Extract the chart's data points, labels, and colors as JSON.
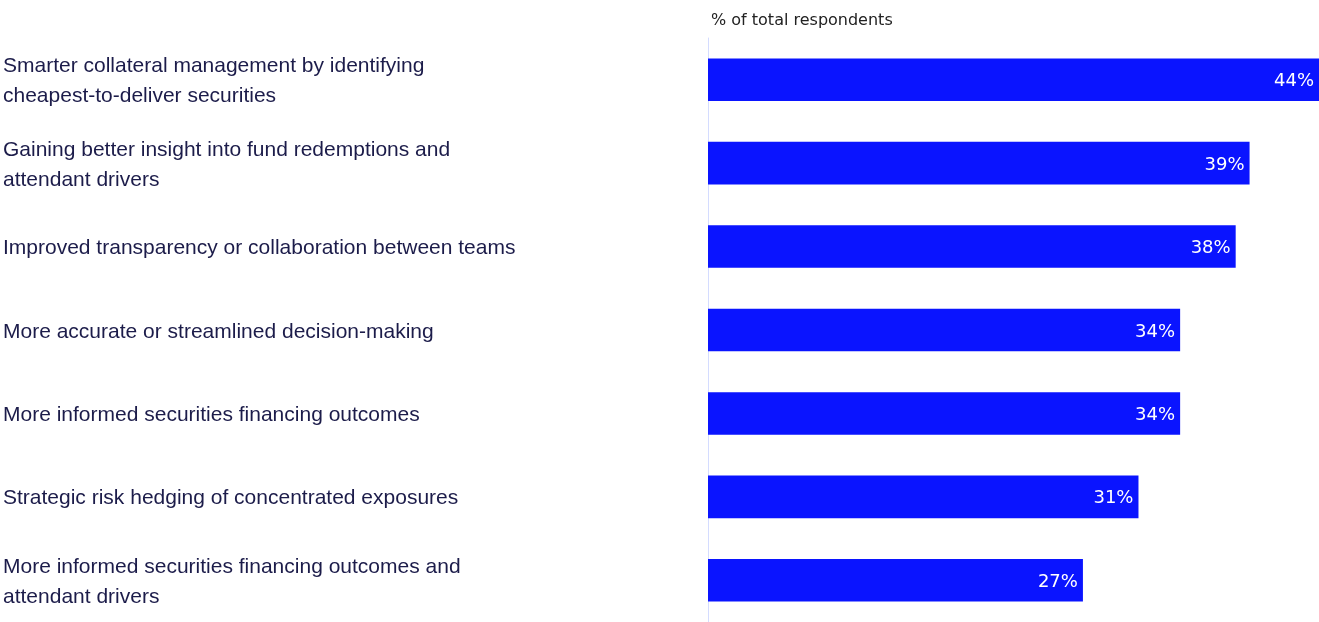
{
  "chart_data": {
    "type": "bar",
    "orientation": "horizontal",
    "title": "% of total respondents",
    "categories": [
      "Smarter collateral management by identifying cheapest-to-deliver securities",
      "Gaining better insight into fund redemptions and attendant drivers",
      "Improved transparency or collaboration between teams",
      "More accurate or streamlined decision-making",
      "More informed securities financing outcomes",
      "Strategic risk hedging of concentrated exposures",
      "More informed securities financing outcomes and attendant drivers"
    ],
    "values": [
      44,
      39,
      38,
      34,
      34,
      31,
      27
    ],
    "value_labels": [
      "44%",
      "39%",
      "38%",
      "34%",
      "34%",
      "31%",
      "27%"
    ],
    "color": "#0a14ff",
    "xlim": [
      0,
      44
    ]
  }
}
